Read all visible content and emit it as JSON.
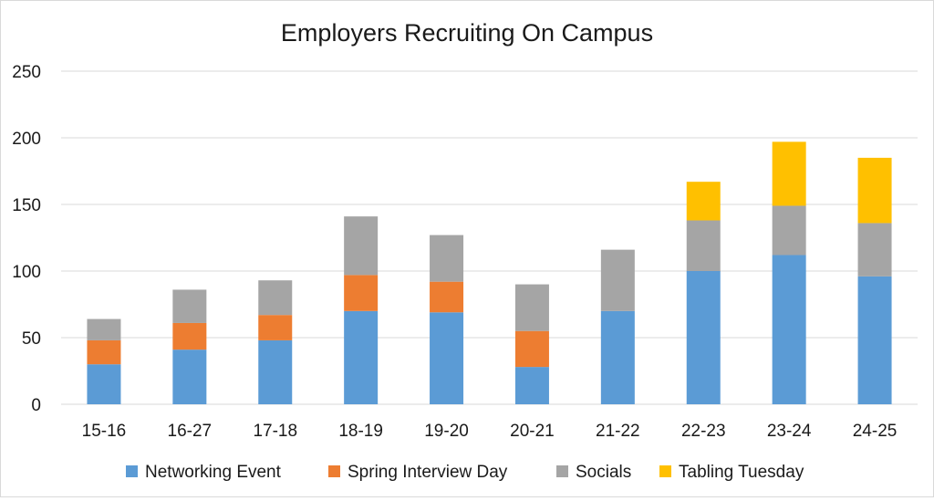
{
  "chart_data": {
    "type": "bar",
    "stacked": true,
    "title": "Employers Recruiting On Campus",
    "xlabel": "",
    "ylabel": "",
    "ylim": [
      0,
      250
    ],
    "yticks": [
      0,
      50,
      100,
      150,
      200,
      250
    ],
    "grid": true,
    "legend_position": "bottom",
    "categories": [
      "15-16",
      "16-27",
      "17-18",
      "18-19",
      "19-20",
      "20-21",
      "21-22",
      "22-23",
      "23-24",
      "24-25"
    ],
    "series": [
      {
        "name": "Networking Event",
        "color": "#5b9bd5",
        "values": [
          30,
          41,
          48,
          70,
          69,
          28,
          70,
          100,
          112,
          96
        ]
      },
      {
        "name": "Spring Interview Day",
        "color": "#ed7d31",
        "values": [
          18,
          20,
          19,
          27,
          23,
          27,
          0,
          0,
          0,
          0
        ]
      },
      {
        "name": "Socials",
        "color": "#a5a5a5",
        "values": [
          16,
          25,
          26,
          44,
          35,
          35,
          46,
          38,
          37,
          40
        ]
      },
      {
        "name": "Tabling Tuesday",
        "color": "#ffc000",
        "values": [
          0,
          0,
          0,
          0,
          0,
          0,
          0,
          29,
          48,
          49
        ]
      }
    ]
  }
}
